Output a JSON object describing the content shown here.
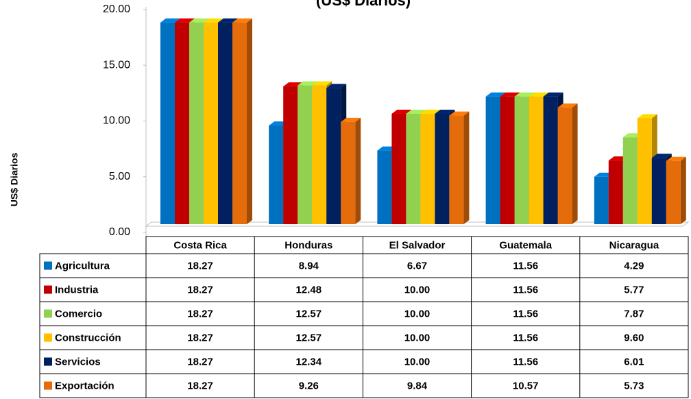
{
  "chart_data": {
    "type": "bar3d",
    "title": "(US$ Diarios)",
    "y_label": "US$ Diarios",
    "categories": [
      "Costa Rica",
      "Honduras",
      "El Salvador",
      "Guatemala",
      "Nicaragua"
    ],
    "series": [
      {
        "name": "Agricultura",
        "color": "#0070c0",
        "values": [
          18.27,
          8.94,
          6.67,
          11.56,
          4.29
        ],
        "value_labels": [
          "18.27",
          "8.94",
          "6.67",
          "11.56",
          "4.29"
        ]
      },
      {
        "name": "Industria",
        "color": "#c00000",
        "values": [
          18.27,
          12.48,
          10,
          11.56,
          5.77
        ],
        "value_labels": [
          "18.27",
          "12.48",
          "10.00",
          "11.56",
          "5.77"
        ]
      },
      {
        "name": "Comercio",
        "color": "#92d050",
        "values": [
          18.27,
          12.57,
          10,
          11.56,
          7.87
        ],
        "value_labels": [
          "18.27",
          "12.57",
          "10.00",
          "11.56",
          "7.87"
        ]
      },
      {
        "name": "Construcción",
        "color": "#ffc000",
        "values": [
          18.27,
          12.57,
          10,
          11.56,
          9.6
        ],
        "value_labels": [
          "18.27",
          "12.57",
          "10.00",
          "11.56",
          "9.60"
        ]
      },
      {
        "name": "Servicios",
        "color": "#002060",
        "values": [
          18.27,
          12.34,
          10,
          11.56,
          6.01
        ],
        "value_labels": [
          "18.27",
          "12.34",
          "10.00",
          "11.56",
          "6.01"
        ]
      },
      {
        "name": "Exportación",
        "color": "#e46c0a",
        "values": [
          18.27,
          9.26,
          9.84,
          10.57,
          5.73
        ],
        "value_labels": [
          "18.27",
          "9.26",
          "9.84",
          "10.57",
          "5.73"
        ]
      }
    ],
    "ylim": [
      0,
      20
    ],
    "yticks": [
      {
        "value": 0,
        "label": "0.00"
      },
      {
        "value": 5,
        "label": "5.00"
      },
      {
        "value": 10,
        "label": "10.00"
      },
      {
        "value": 15,
        "label": "15.00"
      },
      {
        "value": 20,
        "label": "20.00"
      }
    ]
  }
}
